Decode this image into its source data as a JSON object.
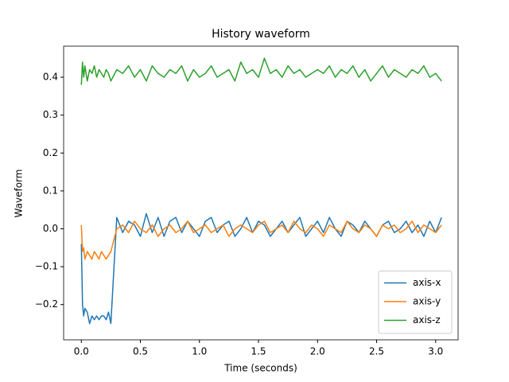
{
  "chart_data": {
    "type": "line",
    "title": "History waveform",
    "xlabel": "Time (seconds)",
    "ylabel": "Waveform",
    "x": [
      0,
      0.01,
      0.02,
      0.03,
      0.05,
      0.07,
      0.09,
      0.11,
      0.13,
      0.15,
      0.17,
      0.19,
      0.21,
      0.23,
      0.25,
      0.3,
      0.35,
      0.4,
      0.45,
      0.5,
      0.55,
      0.6,
      0.65,
      0.7,
      0.75,
      0.8,
      0.85,
      0.9,
      0.95,
      1.0,
      1.05,
      1.1,
      1.15,
      1.2,
      1.25,
      1.3,
      1.35,
      1.4,
      1.45,
      1.5,
      1.55,
      1.6,
      1.65,
      1.7,
      1.75,
      1.8,
      1.85,
      1.9,
      1.95,
      2.0,
      2.05,
      2.1,
      2.15,
      2.2,
      2.25,
      2.3,
      2.35,
      2.4,
      2.45,
      2.5,
      2.55,
      2.6,
      2.65,
      2.7,
      2.75,
      2.8,
      2.85,
      2.9,
      2.95,
      3.0,
      3.05
    ],
    "series": [
      {
        "name": "axis-x",
        "color": "#1f77b4",
        "values": [
          -0.04,
          -0.2,
          -0.23,
          -0.21,
          -0.22,
          -0.25,
          -0.23,
          -0.24,
          -0.23,
          -0.24,
          -0.23,
          -0.23,
          -0.24,
          -0.22,
          -0.25,
          0.03,
          -0.01,
          0.02,
          0.01,
          -0.02,
          0.04,
          -0.01,
          0.03,
          -0.02,
          0.02,
          0.03,
          -0.01,
          0.02,
          0.0,
          -0.02,
          0.02,
          0.03,
          -0.01,
          0.01,
          0.02,
          -0.02,
          0.0,
          0.03,
          -0.01,
          0.02,
          0.01,
          -0.02,
          0.0,
          0.02,
          -0.01,
          0.01,
          0.03,
          -0.02,
          0.0,
          0.02,
          -0.01,
          0.03,
          0.0,
          -0.02,
          0.02,
          0.01,
          -0.01,
          0.02,
          0.0,
          -0.02,
          0.01,
          0.02,
          -0.01,
          0.0,
          0.02,
          -0.01,
          0.01,
          -0.02,
          0.02,
          -0.01,
          0.03
        ]
      },
      {
        "name": "axis-y",
        "color": "#ff7f0e",
        "values": [
          0.01,
          -0.06,
          -0.05,
          -0.08,
          -0.06,
          -0.07,
          -0.08,
          -0.06,
          -0.07,
          -0.08,
          -0.06,
          -0.07,
          -0.08,
          -0.07,
          -0.06,
          0.0,
          0.01,
          -0.01,
          0.02,
          0.0,
          -0.01,
          0.01,
          -0.02,
          0.0,
          0.01,
          -0.01,
          0.0,
          0.02,
          -0.01,
          0.0,
          0.01,
          -0.01,
          0.0,
          0.01,
          -0.02,
          0.0,
          0.01,
          0.0,
          -0.01,
          0.01,
          0.02,
          -0.01,
          0.0,
          0.01,
          -0.01,
          0.02,
          0.0,
          -0.01,
          0.01,
          0.0,
          -0.02,
          0.01,
          0.0,
          -0.01,
          0.02,
          0.0,
          -0.01,
          0.01,
          0.0,
          -0.02,
          0.01,
          0.0,
          0.01,
          -0.01,
          0.0,
          0.02,
          -0.01,
          0.01,
          0.0,
          -0.01,
          0.01
        ]
      },
      {
        "name": "axis-z",
        "color": "#2ca02c",
        "values": [
          0.38,
          0.44,
          0.4,
          0.43,
          0.39,
          0.42,
          0.41,
          0.43,
          0.4,
          0.42,
          0.41,
          0.4,
          0.42,
          0.41,
          0.39,
          0.42,
          0.41,
          0.43,
          0.4,
          0.42,
          0.39,
          0.43,
          0.41,
          0.4,
          0.42,
          0.41,
          0.43,
          0.39,
          0.42,
          0.4,
          0.41,
          0.43,
          0.4,
          0.41,
          0.42,
          0.39,
          0.44,
          0.41,
          0.42,
          0.4,
          0.45,
          0.41,
          0.42,
          0.4,
          0.43,
          0.41,
          0.42,
          0.4,
          0.41,
          0.42,
          0.41,
          0.43,
          0.4,
          0.42,
          0.41,
          0.43,
          0.4,
          0.42,
          0.39,
          0.41,
          0.43,
          0.4,
          0.42,
          0.41,
          0.4,
          0.42,
          0.41,
          0.43,
          0.4,
          0.41,
          0.39
        ]
      }
    ],
    "xlim": [
      -0.15,
      3.19
    ],
    "ylim": [
      -0.293,
      0.482
    ],
    "xticks": [
      {
        "value": 0,
        "label": "0.0"
      },
      {
        "value": 0.5,
        "label": "0.5"
      },
      {
        "value": 1,
        "label": "1.0"
      },
      {
        "value": 1.5,
        "label": "1.5"
      },
      {
        "value": 2,
        "label": "2.0"
      },
      {
        "value": 2.5,
        "label": "2.5"
      },
      {
        "value": 3,
        "label": "3.0"
      }
    ],
    "yticks": [
      {
        "value": -0.2,
        "label": "−0.2"
      },
      {
        "value": -0.1,
        "label": "−0.1"
      },
      {
        "value": 0,
        "label": "0.0"
      },
      {
        "value": 0.1,
        "label": "0.1"
      },
      {
        "value": 0.2,
        "label": "0.2"
      },
      {
        "value": 0.3,
        "label": "0.3"
      },
      {
        "value": 0.4,
        "label": "0.4"
      }
    ],
    "legend": "lower right",
    "grid": false
  }
}
